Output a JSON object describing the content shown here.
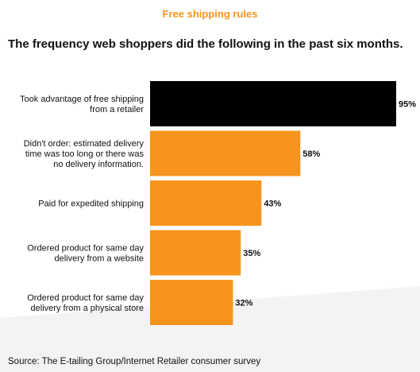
{
  "title": "Free shipping rules",
  "subtitle": "The frequency web shoppers did the following in the past six months.",
  "source": "Source: The E-tailing Group/Internet Retailer consumer survey",
  "colors": {
    "accent": "#f7941d",
    "highlight": "#000000",
    "text": "#111111"
  },
  "chart_data": {
    "type": "bar",
    "orientation": "horizontal",
    "categories": [
      [
        "Took advantage of free shipping",
        "from a retailer"
      ],
      [
        "Didn't order: estimated delivery",
        "time was too long or there was",
        "no delivery information."
      ],
      [
        "Paid for expedited shipping"
      ],
      [
        "Ordered product for same day",
        "delivery from a website"
      ],
      [
        "Ordered product for same day",
        "delivery from a physical store"
      ]
    ],
    "values": [
      95,
      58,
      43,
      35,
      32
    ],
    "value_labels": [
      "95%",
      "58%",
      "43%",
      "35%",
      "32%"
    ],
    "bar_colors": [
      "#000000",
      "#f7941d",
      "#f7941d",
      "#f7941d",
      "#f7941d"
    ],
    "xlim": [
      0,
      95
    ],
    "grid": false,
    "legend": "none"
  }
}
